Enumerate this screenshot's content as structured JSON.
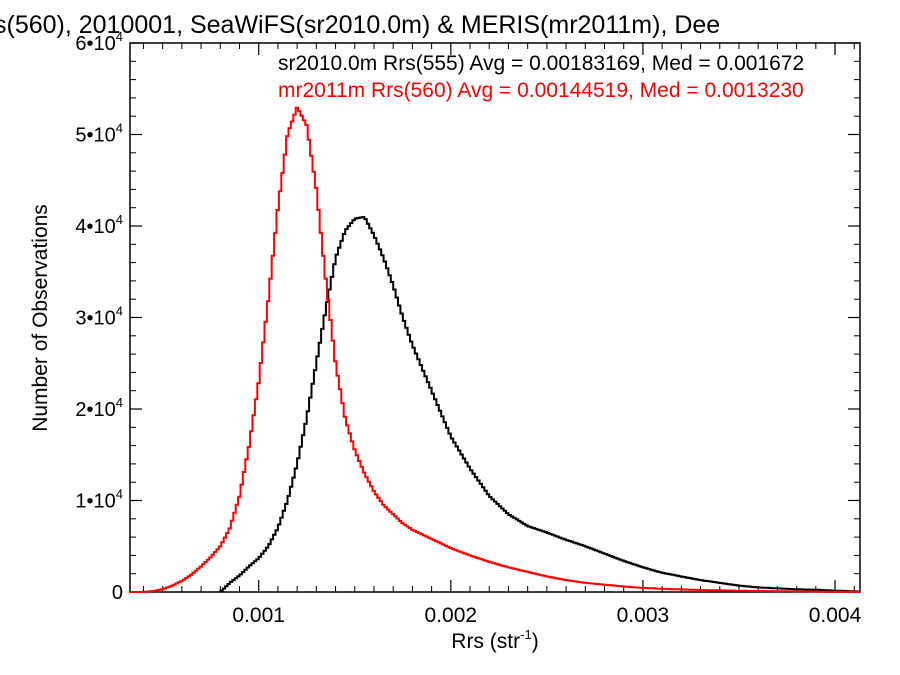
{
  "chart_data": {
    "type": "line",
    "title": "s(560), 2010001, SeaWiFS(sr2010.0m) & MERIS(mr2011m), Dee",
    "xlabel": "Rrs (str",
    "xlabel_sup": "-1",
    "xlabel_end": ")",
    "ylabel": "Number of Observations",
    "xlim": [
      0.00033,
      0.00413
    ],
    "ylim": [
      0,
      60000
    ],
    "x_ticks": [
      {
        "value": 0.001,
        "label": "0.001"
      },
      {
        "value": 0.002,
        "label": "0.002"
      },
      {
        "value": 0.003,
        "label": "0.003"
      },
      {
        "value": 0.004,
        "label": "0.004"
      }
    ],
    "y_ticks": [
      {
        "value": 0,
        "mant": "0",
        "exp": ""
      },
      {
        "value": 10000,
        "mant": "1•10",
        "exp": "4"
      },
      {
        "value": 20000,
        "mant": "2•10",
        "exp": "4"
      },
      {
        "value": 30000,
        "mant": "3•10",
        "exp": "4"
      },
      {
        "value": 40000,
        "mant": "4•10",
        "exp": "4"
      },
      {
        "value": 50000,
        "mant": "5•10",
        "exp": "4"
      },
      {
        "value": 60000,
        "mant": "6•10",
        "exp": "4"
      }
    ],
    "grid": false,
    "legend_placement": "top-right",
    "series": [
      {
        "name": "sr2010.0m Rrs(555) Avg = 0.00183169, Med = 0.001672",
        "color": "#000000",
        "x": [
          0.0008,
          0.00085,
          0.0009,
          0.00095,
          0.001,
          0.00105,
          0.0011,
          0.00115,
          0.0012,
          0.00125,
          0.0013,
          0.00135,
          0.0014,
          0.00145,
          0.0015,
          0.00155,
          0.0016,
          0.00165,
          0.0017,
          0.00175,
          0.0018,
          0.00185,
          0.0019,
          0.00195,
          0.002,
          0.0021,
          0.0022,
          0.0023,
          0.0024,
          0.0025,
          0.0026,
          0.0027,
          0.0028,
          0.0029,
          0.003,
          0.0031,
          0.0032,
          0.0033,
          0.0034,
          0.0035,
          0.0036,
          0.0037,
          0.0038,
          0.0039,
          0.004,
          0.00413
        ],
        "y": [
          0,
          1000,
          1800,
          2800,
          3700,
          5000,
          7000,
          10000,
          14000,
          19000,
          25000,
          31000,
          36500,
          39500,
          40800,
          41000,
          39000,
          36500,
          33500,
          30000,
          27000,
          24500,
          22000,
          19500,
          17000,
          13500,
          10500,
          8500,
          7200,
          6500,
          5700,
          5000,
          4200,
          3400,
          2700,
          2100,
          1700,
          1300,
          1000,
          700,
          500,
          400,
          300,
          250,
          150,
          50
        ]
      },
      {
        "name": "mr2011m Rrs(560) Avg = 0.00144519, Med = 0.0013230",
        "color": "#ff0000",
        "x": [
          0.00033,
          0.0004,
          0.00045,
          0.0005,
          0.00055,
          0.0006,
          0.00065,
          0.0007,
          0.00075,
          0.0008,
          0.00085,
          0.0009,
          0.00095,
          0.001,
          0.00105,
          0.0011,
          0.00115,
          0.0012,
          0.00125,
          0.0013,
          0.00135,
          0.0014,
          0.00145,
          0.0015,
          0.00155,
          0.0016,
          0.00165,
          0.0017,
          0.00175,
          0.0018,
          0.0019,
          0.002,
          0.0021,
          0.0022,
          0.0023,
          0.0024,
          0.0025,
          0.0026,
          0.0027,
          0.0028,
          0.0029,
          0.003,
          0.0031,
          0.0032,
          0.0033,
          0.0034,
          0.0035,
          0.0036,
          0.0037,
          0.0038,
          0.0039,
          0.004,
          0.00413
        ],
        "y": [
          0,
          0,
          100,
          300,
          700,
          1200,
          1900,
          2800,
          3800,
          5000,
          7000,
          10500,
          16000,
          23000,
          32000,
          42000,
          50000,
          53000,
          51000,
          44000,
          34000,
          25000,
          19000,
          15500,
          13000,
          11000,
          9500,
          8500,
          7500,
          6800,
          5800,
          4800,
          4000,
          3300,
          2700,
          2200,
          1700,
          1300,
          1000,
          800,
          600,
          450,
          350,
          280,
          220,
          180,
          140,
          110,
          90,
          70,
          50,
          30,
          10
        ]
      }
    ]
  }
}
